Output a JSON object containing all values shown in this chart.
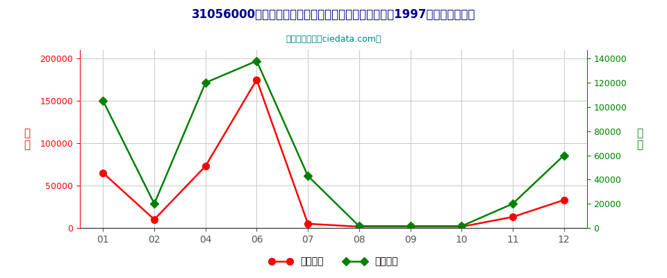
{
  "title": "31056000含磷、钾两种肥效元素的矿物肥料或化学肥料1997年出口月度走势",
  "subtitle": "进出口服务网（ciedata.com）",
  "months": [
    "01",
    "02",
    "04",
    "06",
    "07",
    "08",
    "09",
    "10",
    "11",
    "12"
  ],
  "export_usd": [
    65000,
    10000,
    73000,
    175000,
    5000,
    1500,
    1500,
    1500,
    13000,
    33000
  ],
  "export_qty": [
    105000,
    20000,
    120000,
    138000,
    43000,
    1500,
    1500,
    1500,
    20000,
    60000
  ],
  "left_ylim": [
    0,
    210000
  ],
  "right_ylim": [
    0,
    147000
  ],
  "left_yticks": [
    0,
    50000,
    100000,
    150000,
    200000
  ],
  "right_yticks": [
    0,
    20000,
    40000,
    60000,
    80000,
    100000,
    120000,
    140000
  ],
  "left_ylabel": "金\n额",
  "right_ylabel": "数\n量",
  "legend_usd": "出口美元",
  "legend_qty": "出口数量",
  "color_usd": "#FF0000",
  "color_qty": "#008000",
  "bg_color": "#FFFFFF",
  "grid_color": "#CCCCCC",
  "title_color": "#00008B",
  "subtitle_color": "#008080"
}
